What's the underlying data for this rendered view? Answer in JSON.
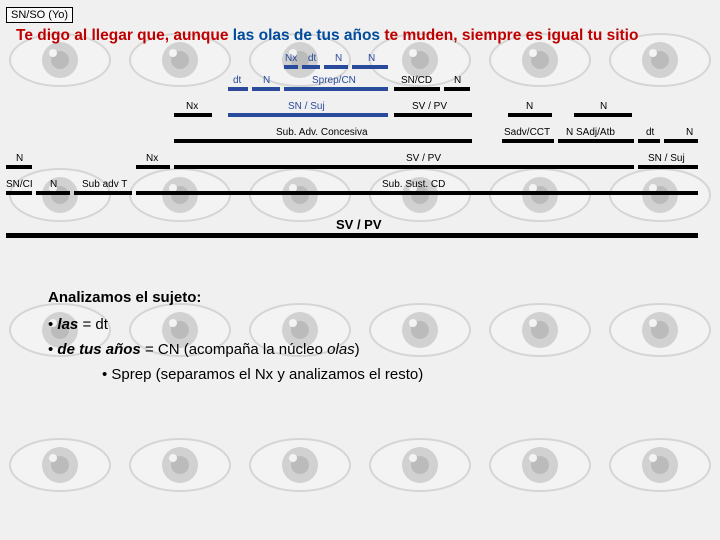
{
  "header": {
    "snso": "SN/SO (Yo)"
  },
  "sentence": {
    "parts": [
      {
        "t": "Te digo al llegar que, aunque ",
        "c": "#c00000"
      },
      {
        "t": "las olas de tus años",
        "c": "#004b9b"
      },
      {
        "t": " te muden",
        "c": "#c00000"
      },
      {
        "t": ", siempre es igual tu sitio",
        "c": "#c00000"
      }
    ]
  },
  "labels": {
    "r1": {
      "nx": "Nx",
      "dt": "dt",
      "n1": "N",
      "n2": "N"
    },
    "r2": {
      "dt": "dt",
      "n": "N",
      "sprep": "Sprep/CN",
      "sncd": "SN/CD",
      "n2": "N"
    },
    "r3": {
      "nx": "Nx",
      "snsuj": "SN / Suj",
      "svpv": "SV / PV",
      "n1": "N",
      "n2": "N"
    },
    "r4": {
      "sub": "Sub. Adv. Concesiva",
      "sadv": "Sadv/CCT",
      "nsadj": "N SAdj/Atb",
      "dt": "dt",
      "n": "N"
    },
    "r5": {
      "n": "N",
      "nx": "Nx",
      "svpv": "SV / PV",
      "snsuj": "SN / Suj"
    },
    "r6": {
      "sncl": "SN/CI",
      "n": "N",
      "subadv": "Sub adv T",
      "subsust": "Sub. Sust. CD"
    },
    "r7": {
      "svpv": "SV / PV"
    }
  },
  "analysis": {
    "heading": "Analizamos el sujeto:",
    "b1a": "las",
    "b1b": " = dt",
    "b2a": "de tus años",
    "b2b": " = CN (acompaña la núcleo ",
    "b2c": "olas",
    "b2d": ")",
    "sub": "Sprep (separamos el Nx y analizamos el resto)"
  },
  "colors": {
    "black": "#000000",
    "blue": "#2a4b9b"
  }
}
